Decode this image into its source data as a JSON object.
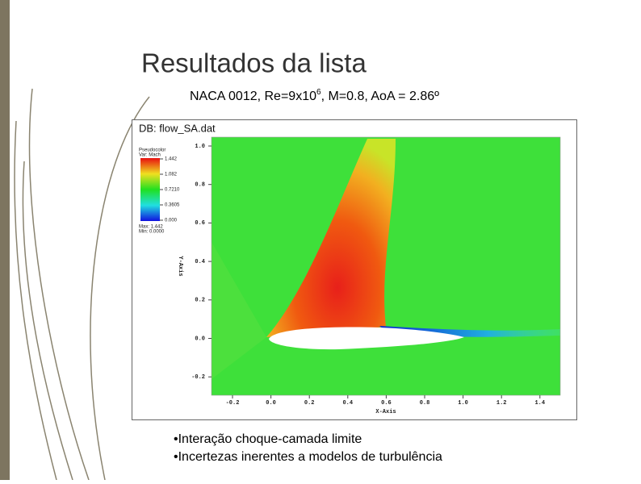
{
  "slide": {
    "title": "Resultados da lista",
    "subtitle": {
      "pre": "NACA 0012, Re=9x10",
      "sup": "6",
      "post": ", M=0.8, AoA = 2.86º"
    },
    "figure": {
      "db_label": "DB: flow_SA.dat",
      "legend": {
        "plot": "Pseudocolor",
        "var": "Var: Mach",
        "levels": [
          "1.442",
          "1.082",
          "0.7210",
          "0.3605",
          "0.000"
        ],
        "max": "Max: 1.442",
        "min": "Min: 0.0000"
      },
      "x_axis": {
        "title": "X-Axis",
        "ticks": [
          "-0.2",
          "0.0",
          "0.2",
          "0.4",
          "0.6",
          "0.8",
          "1.0",
          "1.2",
          "1.4"
        ]
      },
      "y_axis": {
        "title": "Y-Axis",
        "ticks": [
          "1.0",
          "0.8",
          "0.6",
          "0.4",
          "0.2",
          "0.0",
          "-0.2"
        ]
      }
    },
    "bullets": [
      "•Interação choque-camada limite",
      "•Incertezas inerentes a modelos de turbulência"
    ]
  }
}
